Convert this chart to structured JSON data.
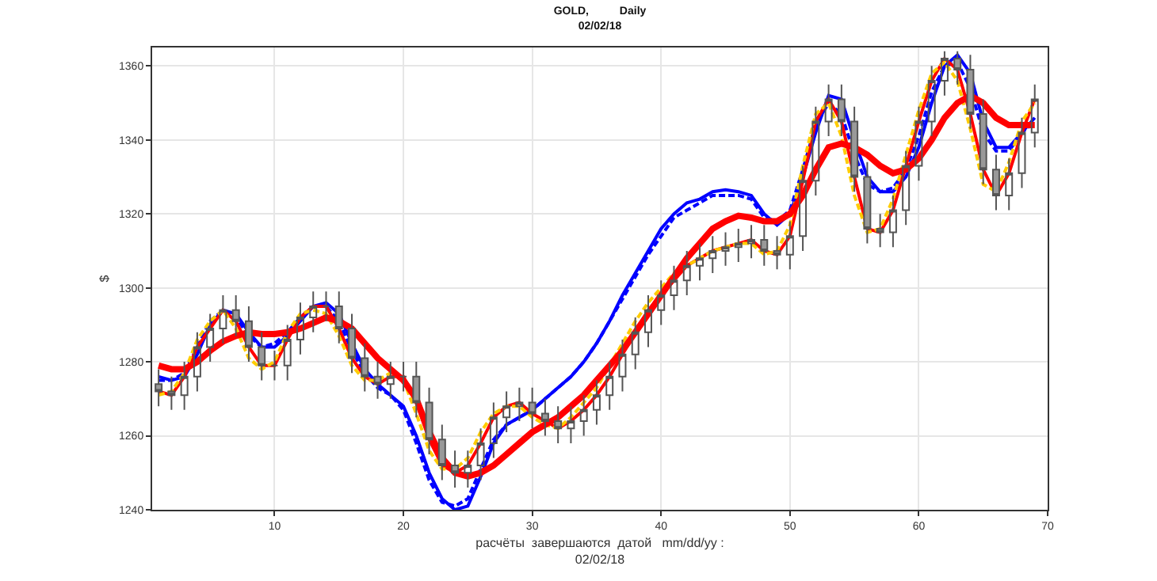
{
  "chart_data": {
    "type": "candlestick",
    "title": "GOLD,          Daily\n02/02/18",
    "xlabel": "расчёты  завершаются  датой   mm/dd/yy :\n02/02/18",
    "ylabel": "$",
    "x": [
      1,
      2,
      3,
      4,
      5,
      6,
      7,
      8,
      9,
      10,
      11,
      12,
      13,
      14,
      15,
      16,
      17,
      18,
      19,
      20,
      21,
      22,
      23,
      24,
      25,
      26,
      27,
      28,
      29,
      30,
      31,
      32,
      33,
      34,
      35,
      36,
      37,
      38,
      39,
      40,
      41,
      42,
      43,
      44,
      45,
      46,
      47,
      48,
      49,
      50,
      51,
      52,
      53,
      54,
      55,
      56,
      57,
      58,
      59,
      60,
      61,
      62,
      63,
      64,
      65,
      66,
      67,
      68,
      69
    ],
    "ohlc": [
      [
        1274,
        1278,
        1268,
        1272
      ],
      [
        1272,
        1276,
        1267,
        1271
      ],
      [
        1271,
        1280,
        1267,
        1276
      ],
      [
        1276,
        1288,
        1272,
        1284
      ],
      [
        1284,
        1293,
        1280,
        1289
      ],
      [
        1289,
        1298,
        1285,
        1294
      ],
      [
        1294,
        1298,
        1287,
        1291
      ],
      [
        1291,
        1295,
        1280,
        1284
      ],
      [
        1284,
        1288,
        1275,
        1279
      ],
      [
        1279,
        1283,
        1275,
        1279
      ],
      [
        1279,
        1290,
        1275,
        1286
      ],
      [
        1286,
        1296,
        1282,
        1292
      ],
      [
        1292,
        1299,
        1288,
        1295
      ],
      [
        1295,
        1299,
        1291,
        1295
      ],
      [
        1295,
        1299,
        1285,
        1289
      ],
      [
        1289,
        1293,
        1277,
        1281
      ],
      [
        1281,
        1285,
        1272,
        1276
      ],
      [
        1276,
        1280,
        1270,
        1274
      ],
      [
        1274,
        1280,
        1270,
        1276
      ],
      [
        1276,
        1280,
        1272,
        1276
      ],
      [
        1276,
        1280,
        1265,
        1269
      ],
      [
        1269,
        1273,
        1255,
        1259
      ],
      [
        1259,
        1263,
        1248,
        1252
      ],
      [
        1252,
        1256,
        1246,
        1250
      ],
      [
        1250,
        1256,
        1246,
        1252
      ],
      [
        1252,
        1262,
        1248,
        1258
      ],
      [
        1258,
        1269,
        1254,
        1265
      ],
      [
        1265,
        1272,
        1261,
        1268
      ],
      [
        1268,
        1273,
        1264,
        1269
      ],
      [
        1269,
        1273,
        1262,
        1266
      ],
      [
        1266,
        1270,
        1260,
        1264
      ],
      [
        1264,
        1268,
        1258,
        1262
      ],
      [
        1262,
        1268,
        1258,
        1264
      ],
      [
        1264,
        1271,
        1260,
        1267
      ],
      [
        1267,
        1275,
        1263,
        1271
      ],
      [
        1271,
        1280,
        1267,
        1276
      ],
      [
        1276,
        1286,
        1272,
        1282
      ],
      [
        1282,
        1292,
        1278,
        1288
      ],
      [
        1288,
        1298,
        1284,
        1294
      ],
      [
        1294,
        1302,
        1290,
        1298
      ],
      [
        1298,
        1306,
        1294,
        1302
      ],
      [
        1302,
        1310,
        1298,
        1306
      ],
      [
        1306,
        1312,
        1302,
        1308
      ],
      [
        1308,
        1314,
        1304,
        1310
      ],
      [
        1310,
        1315,
        1306,
        1311
      ],
      [
        1311,
        1316,
        1307,
        1312
      ],
      [
        1312,
        1317,
        1308,
        1313
      ],
      [
        1313,
        1317,
        1306,
        1310
      ],
      [
        1310,
        1314,
        1305,
        1309
      ],
      [
        1309,
        1318,
        1305,
        1314
      ],
      [
        1314,
        1333,
        1310,
        1329
      ],
      [
        1329,
        1349,
        1325,
        1345
      ],
      [
        1345,
        1355,
        1341,
        1351
      ],
      [
        1351,
        1355,
        1341,
        1345
      ],
      [
        1345,
        1349,
        1326,
        1330
      ],
      [
        1330,
        1334,
        1312,
        1316
      ],
      [
        1316,
        1320,
        1311,
        1315
      ],
      [
        1315,
        1325,
        1311,
        1321
      ],
      [
        1321,
        1337,
        1317,
        1333
      ],
      [
        1333,
        1349,
        1329,
        1345
      ],
      [
        1345,
        1360,
        1341,
        1356
      ],
      [
        1356,
        1364,
        1352,
        1362
      ],
      [
        1362,
        1364,
        1355,
        1359
      ],
      [
        1359,
        1363,
        1343,
        1347
      ],
      [
        1347,
        1351,
        1328,
        1332
      ],
      [
        1332,
        1336,
        1321,
        1325
      ],
      [
        1325,
        1335,
        1321,
        1331
      ],
      [
        1331,
        1346,
        1327,
        1342
      ],
      [
        1342,
        1355,
        1338,
        1351
      ]
    ],
    "series": [
      {
        "type": "line",
        "color": "#0000ff",
        "line_style": "solid",
        "values": [
          1276,
          1275,
          1276,
          1282,
          1290,
          1294,
          1293,
          1288,
          1284,
          1284,
          1287,
          1291,
          1295,
          1296,
          1293,
          1285,
          1278,
          1274,
          1271,
          1268,
          1260,
          1250,
          1243,
          1240,
          1241,
          1249,
          1258,
          1263,
          1265,
          1267,
          1270,
          1273,
          1276,
          1280,
          1285,
          1291,
          1298,
          1304,
          1310,
          1316,
          1320,
          1323,
          1324,
          1326,
          1326.5,
          1326,
          1325,
          1320,
          1317,
          1320,
          1330,
          1342,
          1352,
          1351,
          1340,
          1330,
          1326,
          1326,
          1330,
          1338,
          1350,
          1360,
          1363,
          1358,
          1345,
          1338,
          1338,
          1342,
          1346
        ]
      },
      {
        "type": "line",
        "color": "#0000ff",
        "line_style": "dashed",
        "values": [
          1275,
          1275,
          1277,
          1284,
          1291,
          1294,
          1292,
          1287,
          1284,
          1285,
          1288,
          1292,
          1295,
          1295,
          1291,
          1283,
          1277,
          1273,
          1271,
          1267,
          1258,
          1248,
          1242,
          1241,
          1243,
          1251,
          1259,
          1263,
          1265,
          1267,
          1270,
          1273,
          1276,
          1280,
          1285,
          1291,
          1297,
          1303,
          1309,
          1314,
          1319,
          1321,
          1323,
          1325,
          1325,
          1325,
          1324,
          1319,
          1318,
          1321,
          1332,
          1344,
          1350,
          1347,
          1336,
          1328,
          1326,
          1327,
          1332,
          1341,
          1353,
          1360,
          1361,
          1354,
          1342,
          1337,
          1337,
          1342,
          1345
        ]
      },
      {
        "type": "line",
        "color": "#ff0000",
        "line_style": "solid",
        "values": [
          1272,
          1271,
          1276,
          1284,
          1289,
          1294,
          1291,
          1284,
          1279,
          1279,
          1286,
          1292,
          1295,
          1295,
          1289,
          1281,
          1276,
          1274,
          1276,
          1276,
          1269,
          1259,
          1252,
          1250,
          1252,
          1258,
          1265,
          1268,
          1269,
          1266,
          1264,
          1262,
          1264,
          1267,
          1271,
          1276,
          1282,
          1288,
          1294,
          1298,
          1302,
          1306,
          1308,
          1310,
          1311,
          1312,
          1313,
          1310,
          1309,
          1314,
          1329,
          1345,
          1351,
          1345,
          1330,
          1316,
          1315,
          1321,
          1333,
          1345,
          1356,
          1362,
          1359,
          1347,
          1332,
          1325,
          1331,
          1342,
          1351
        ]
      },
      {
        "type": "line",
        "color": "#ffcc00",
        "line_style": "dashed",
        "values": [
          1271,
          1272,
          1277,
          1286,
          1291,
          1294,
          1289,
          1281,
          1278,
          1280,
          1288,
          1293,
          1294,
          1293,
          1287,
          1279,
          1275,
          1275,
          1277,
          1275,
          1266,
          1256,
          1251,
          1251,
          1254,
          1261,
          1266,
          1268,
          1268,
          1265,
          1263,
          1262,
          1265,
          1269,
          1273,
          1279,
          1285,
          1291,
          1296,
          1300,
          1304,
          1306,
          1308,
          1310,
          1311,
          1312,
          1312,
          1309,
          1310,
          1317,
          1333,
          1347,
          1350,
          1341,
          1325,
          1315,
          1316,
          1324,
          1336,
          1348,
          1358,
          1361,
          1356,
          1343,
          1328,
          1326,
          1334,
          1345,
          1350
        ]
      },
      {
        "type": "line",
        "color": "#ff0000",
        "line_style": "solid",
        "values": [
          1279,
          1278,
          1278,
          1280,
          1283,
          1285.5,
          1287,
          1288,
          1287.5,
          1287.5,
          1288,
          1289,
          1290.5,
          1292,
          1291,
          1289,
          1285,
          1281,
          1278,
          1275,
          1270,
          1261,
          1254,
          1250,
          1249,
          1250,
          1252,
          1255,
          1258,
          1261,
          1263,
          1265,
          1268,
          1271,
          1275,
          1279,
          1283,
          1288,
          1293,
          1298,
          1303,
          1308,
          1312,
          1316,
          1318,
          1319.5,
          1319,
          1318,
          1318,
          1320,
          1325,
          1332,
          1338,
          1339,
          1338,
          1336,
          1333,
          1331,
          1332,
          1335,
          1340,
          1346,
          1350,
          1352,
          1350,
          1346,
          1344,
          1344,
          1344
        ]
      }
    ],
    "xlim": [
      0.5,
      70
    ],
    "xticks": [
      10,
      20,
      30,
      40,
      50,
      60,
      70
    ],
    "ylim": [
      1240,
      1365
    ],
    "yticks": [
      1240,
      1260,
      1280,
      1300,
      1320,
      1340,
      1360
    ],
    "grid": true
  }
}
